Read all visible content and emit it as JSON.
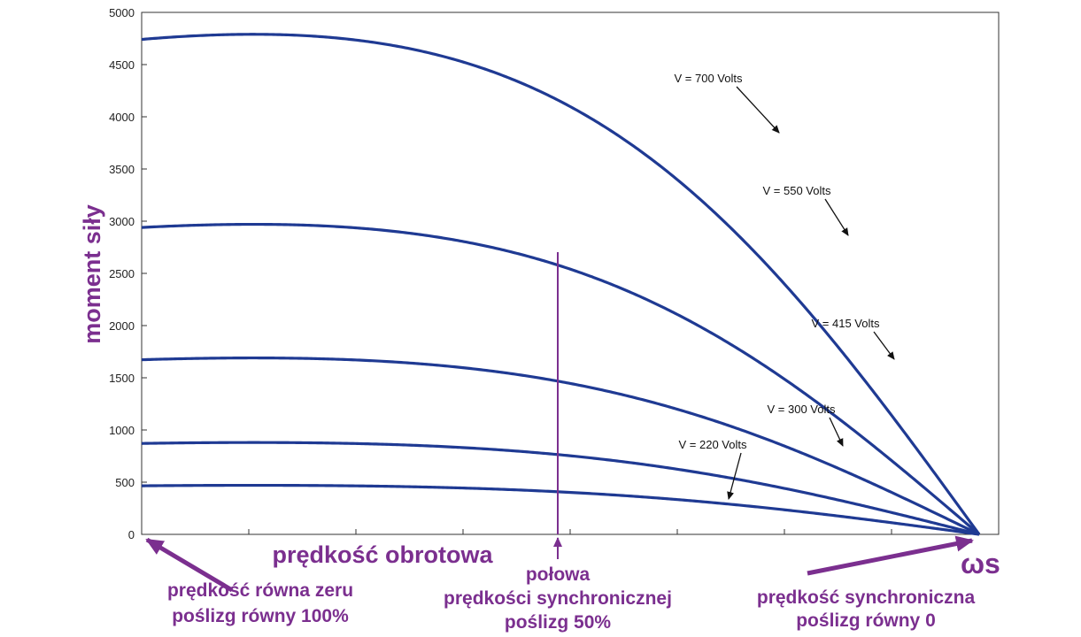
{
  "chart_data": {
    "type": "line",
    "xlabel": "prędkość obrotowa",
    "ylabel": "moment siły",
    "ylim": [
      0,
      5000
    ],
    "yticks": [
      0,
      500,
      1000,
      1500,
      2000,
      2500,
      3000,
      3500,
      4000,
      4500,
      5000
    ],
    "grid": false,
    "series": [
      {
        "name": "V = 700 Volts",
        "peak": 4790
      },
      {
        "name": "V = 550 Volts",
        "peak": 2970
      },
      {
        "name": "V = 415 Volts",
        "peak": 1690
      },
      {
        "name": "V = 300 Volts",
        "peak": 880
      },
      {
        "name": "V = 220 Volts",
        "peak": 470
      }
    ],
    "annotations": {
      "synchronous_speed_symbol": "ωs",
      "left_line1": "prędkość równa zeru",
      "left_line2": "poślizg równy 100%",
      "middle_line1": "połowa",
      "middle_line2": "prędkości synchronicznej",
      "middle_line3": "poślizg 50%",
      "right_line1": "prędkość synchroniczna",
      "right_line2": "poślizg równy 0"
    }
  }
}
